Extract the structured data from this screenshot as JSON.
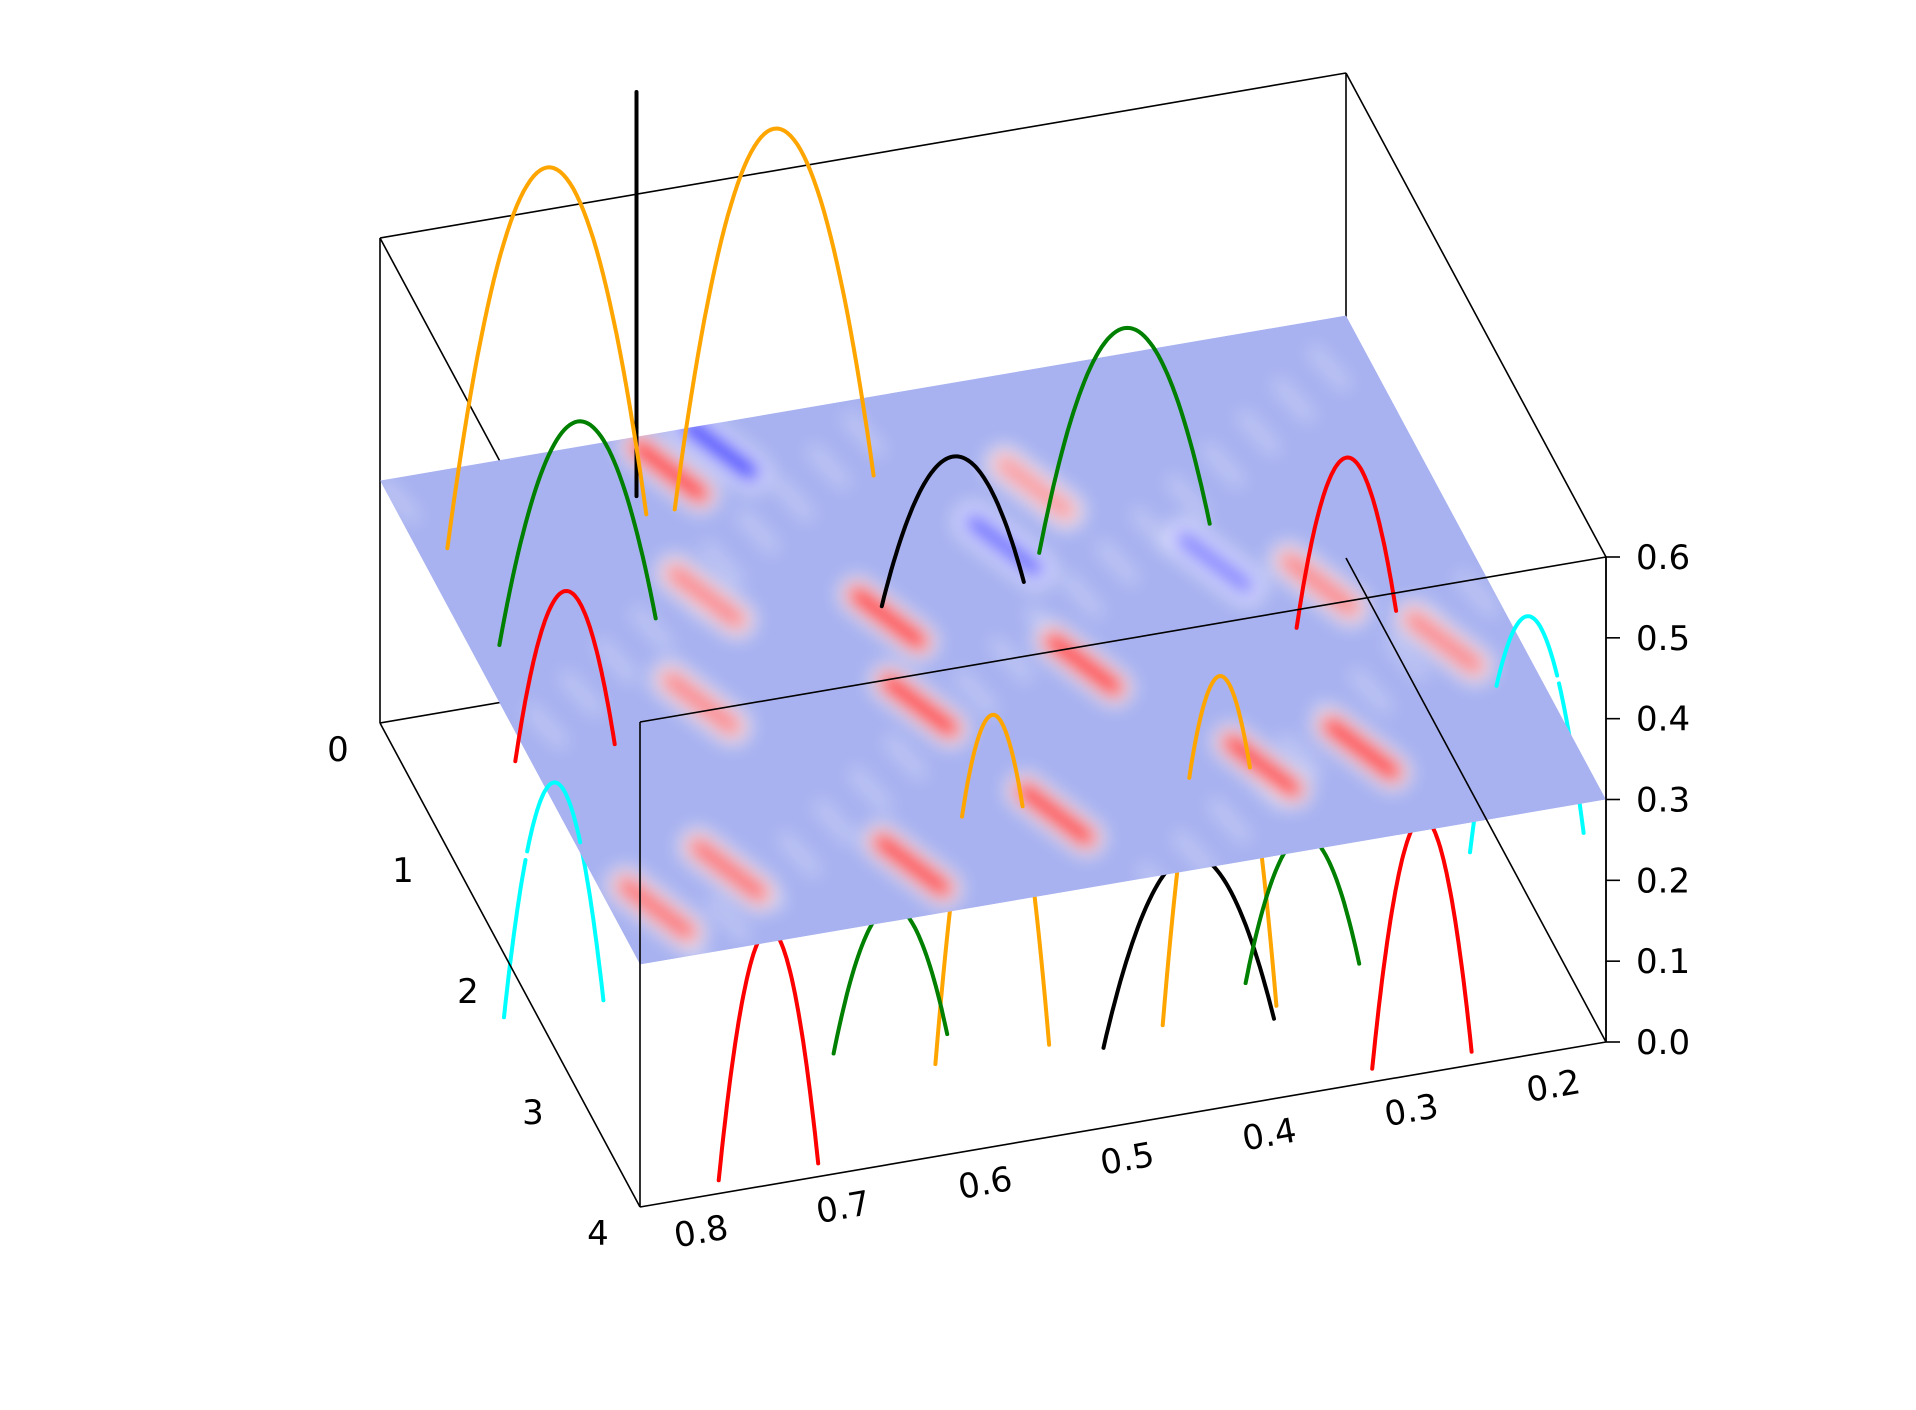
{
  "chart_data": {
    "type": "surface",
    "title": "",
    "x_axis": {
      "label": "",
      "ticks": [
        "0.8",
        "0.7",
        "0.6",
        "0.5",
        "0.4",
        "0.3",
        "0.2"
      ],
      "tick_values": [
        0.8,
        0.7,
        0.6,
        0.5,
        0.4,
        0.3,
        0.2
      ],
      "range": [
        0.85,
        0.17
      ]
    },
    "y_axis": {
      "label": "",
      "ticks": [
        "0",
        "1",
        "2",
        "3",
        "4"
      ],
      "tick_values": [
        0,
        1,
        2,
        3,
        4
      ],
      "range": [
        0,
        4
      ]
    },
    "z_axis": {
      "label": "",
      "ticks": [
        "0.0",
        "0.1",
        "0.2",
        "0.3",
        "0.4",
        "0.5",
        "0.6"
      ],
      "tick_values": [
        0.0,
        0.1,
        0.2,
        0.3,
        0.4,
        0.5,
        0.6
      ],
      "range": [
        0.0,
        0.6
      ]
    },
    "plane_z": 0.3,
    "plane_colormap": [
      "#0000ff",
      "#ffffff",
      "#ff0000"
    ],
    "plane_background_color": "#a8b2f0",
    "intensity_spots": [
      {
        "x": 0.66,
        "y": 0.3,
        "v": 1.0
      },
      {
        "x": 0.57,
        "y": 1.7,
        "v": 1.0
      },
      {
        "x": 0.58,
        "y": 2.4,
        "v": 1.0
      },
      {
        "x": 0.46,
        "y": 2.3,
        "v": 1.0
      },
      {
        "x": 0.31,
        "y": 3.3,
        "v": 1.0
      },
      {
        "x": 0.38,
        "y": 3.3,
        "v": 0.9
      },
      {
        "x": 0.53,
        "y": 3.4,
        "v": 0.9
      },
      {
        "x": 0.64,
        "y": 3.6,
        "v": 0.9
      },
      {
        "x": 0.82,
        "y": 3.6,
        "v": 0.6
      },
      {
        "x": 0.76,
        "y": 3.4,
        "v": 0.6
      },
      {
        "x": 0.68,
        "y": 1.3,
        "v": 0.5
      },
      {
        "x": 0.72,
        "y": 2.1,
        "v": 0.5
      },
      {
        "x": 0.43,
        "y": 0.9,
        "v": 0.4
      },
      {
        "x": 0.28,
        "y": 2.0,
        "v": 0.5
      },
      {
        "x": 0.22,
        "y": 2.6,
        "v": 0.5
      },
      {
        "x": 0.62,
        "y": 0.2,
        "v": -0.9
      },
      {
        "x": 0.47,
        "y": 1.3,
        "v": -0.6
      },
      {
        "x": 0.34,
        "y": 1.7,
        "v": -0.5
      }
    ],
    "series": [
      {
        "color": "#000000",
        "curves": [
          {
            "x0": 0.69,
            "x1": 0.69,
            "peak": 0.8,
            "base": 0.3,
            "y": 0.45
          },
          {
            "x0": 0.57,
            "x1": 0.47,
            "peak": 0.47,
            "base": 0.3,
            "y": 1.6
          },
          {
            "x0": 0.51,
            "x1": 0.39,
            "peak": 0.27,
            "base": 0.05,
            "y": 3.7
          }
        ]
      },
      {
        "color": "#ffa500",
        "curves": [
          {
            "x0": 0.83,
            "x1": 0.69,
            "peak": 0.75,
            "base": 0.3,
            "y": 0.6
          },
          {
            "x0": 0.67,
            "x1": 0.53,
            "peak": 0.75,
            "base": 0.3,
            "y": 0.6
          },
          {
            "x0": 0.61,
            "x1": 0.53,
            "peak": 0.42,
            "base": 0.0,
            "y": 3.3
          },
          {
            "x0": 0.45,
            "x1": 0.37,
            "peak": 0.42,
            "base": 0.0,
            "y": 3.3
          }
        ]
      },
      {
        "color": "#008000",
        "curves": [
          {
            "x0": 0.83,
            "x1": 0.72,
            "peak": 0.56,
            "base": 0.3,
            "y": 1.4
          },
          {
            "x0": 0.45,
            "x1": 0.33,
            "peak": 0.56,
            "base": 0.3,
            "y": 1.4
          },
          {
            "x0": 0.7,
            "x1": 0.62,
            "peak": 0.27,
            "base": 0.1,
            "y": 3.7
          },
          {
            "x0": 0.41,
            "x1": 0.33,
            "peak": 0.27,
            "base": 0.1,
            "y": 3.7
          }
        ]
      },
      {
        "color": "#ff0000",
        "curves": [
          {
            "x0": 0.86,
            "x1": 0.79,
            "peak": 0.5,
            "base": 0.3,
            "y": 2.3
          },
          {
            "x0": 0.31,
            "x1": 0.24,
            "peak": 0.5,
            "base": 0.3,
            "y": 2.3
          },
          {
            "x0": 0.79,
            "x1": 0.72,
            "peak": 0.3,
            "base": 0.0,
            "y": 3.9
          },
          {
            "x0": 0.33,
            "x1": 0.26,
            "peak": 0.3,
            "base": 0.0,
            "y": 3.9
          }
        ]
      },
      {
        "color": "#00ffff",
        "curves": [
          {
            "x0": 0.9,
            "x1": 0.83,
            "peak": 0.38,
            "base": 0.1,
            "y": 3.0
          },
          {
            "x0": 0.22,
            "x1": 0.14,
            "peak": 0.38,
            "base": 0.1,
            "y": 3.0
          }
        ]
      }
    ]
  }
}
